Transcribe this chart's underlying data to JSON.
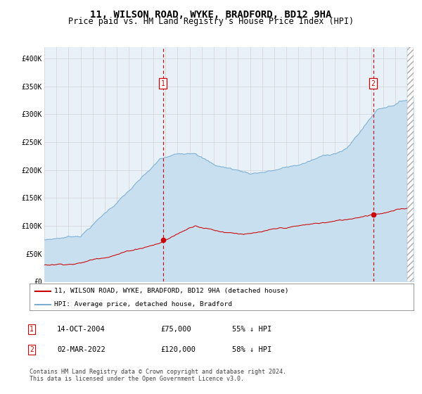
{
  "title": "11, WILSON ROAD, WYKE, BRADFORD, BD12 9HA",
  "subtitle": "Price paid vs. HM Land Registry's House Price Index (HPI)",
  "title_fontsize": 10,
  "subtitle_fontsize": 8.5,
  "background_color": "#ffffff",
  "plot_bg_color": "#e8f0f8",
  "hpi_color": "#7bafd4",
  "hpi_fill_color": "#c8dff0",
  "price_color": "#cc0000",
  "vline_color": "#cc0000",
  "ylim": [
    0,
    420000
  ],
  "yticks": [
    0,
    50000,
    100000,
    150000,
    200000,
    250000,
    300000,
    350000,
    400000
  ],
  "ytick_labels": [
    "£0",
    "£50K",
    "£100K",
    "£150K",
    "£200K",
    "£250K",
    "£300K",
    "£350K",
    "£400K"
  ],
  "sale1_date": 2004.79,
  "sale1_price": 75000,
  "sale1_label": "1",
  "sale2_date": 2022.17,
  "sale2_price": 120000,
  "sale2_label": "2",
  "legend_line1": "11, WILSON ROAD, WYKE, BRADFORD, BD12 9HA (detached house)",
  "legend_line2": "HPI: Average price, detached house, Bradford",
  "table_rows": [
    {
      "num": "1",
      "date": "14-OCT-2004",
      "price": "£75,000",
      "pct": "55% ↓ HPI"
    },
    {
      "num": "2",
      "date": "02-MAR-2022",
      "price": "£120,000",
      "pct": "58% ↓ HPI"
    }
  ],
  "footnote": "Contains HM Land Registry data © Crown copyright and database right 2024.\nThis data is licensed under the Open Government Licence v3.0.",
  "xmin": 1995.0,
  "xmax": 2025.5
}
